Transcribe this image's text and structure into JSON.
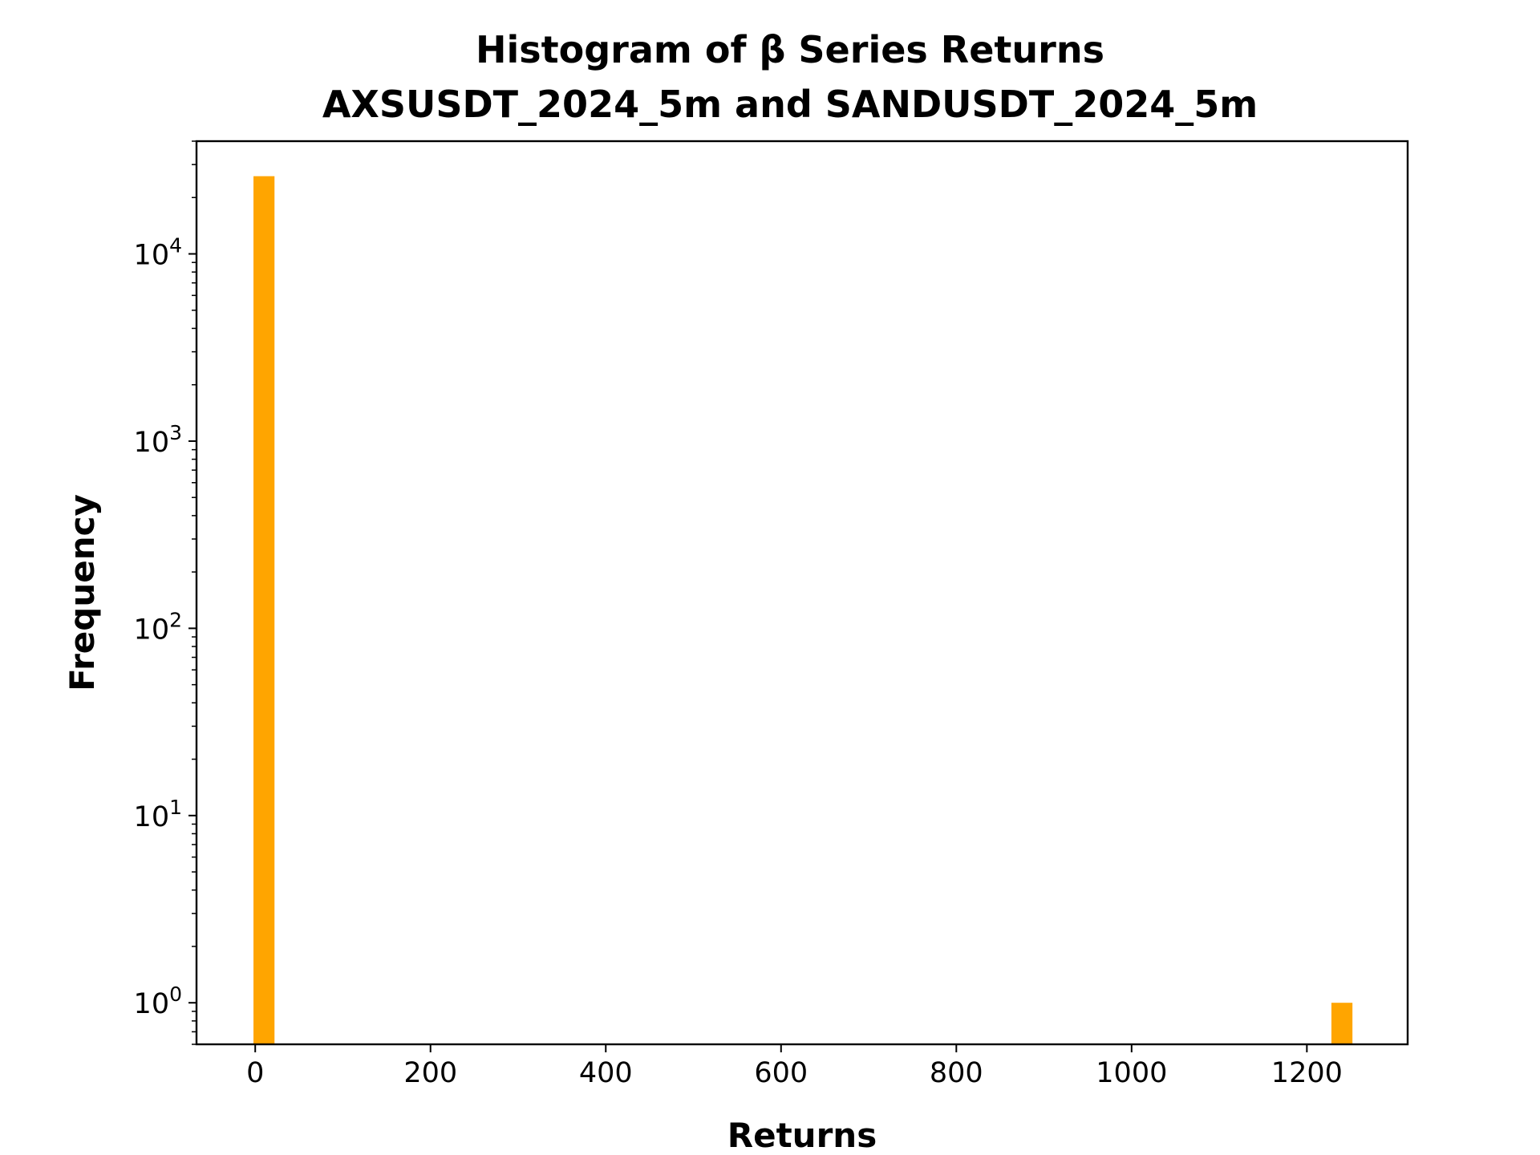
{
  "chart_data": {
    "type": "bar",
    "title_line1": "Histogram of β Series Returns",
    "title_line2": "AXSUSDT_2024_5m and SANDUSDT_2024_5m",
    "xlabel": "Returns",
    "ylabel": "Frequency",
    "xlim": [
      -67,
      1315
    ],
    "ylim": [
      0.6,
      40000
    ],
    "yscale": "log",
    "grid": false,
    "bar_color": "#ffa500",
    "x_ticks": [
      {
        "value": 0,
        "label": "0"
      },
      {
        "value": 200,
        "label": "200"
      },
      {
        "value": 400,
        "label": "400"
      },
      {
        "value": 600,
        "label": "600"
      },
      {
        "value": 800,
        "label": "800"
      },
      {
        "value": 1000,
        "label": "1000"
      },
      {
        "value": 1200,
        "label": "1200"
      }
    ],
    "y_ticks": [
      {
        "value": 1,
        "base": "10",
        "exp": "0"
      },
      {
        "value": 10,
        "base": "10",
        "exp": "1"
      },
      {
        "value": 100,
        "base": "10",
        "exp": "2"
      },
      {
        "value": 1000,
        "base": "10",
        "exp": "3"
      },
      {
        "value": 10000,
        "base": "10",
        "exp": "4"
      }
    ],
    "bins": [
      {
        "x0": -2,
        "x1": 22,
        "count": 26000
      },
      {
        "x0": 1228,
        "x1": 1252,
        "count": 1
      }
    ]
  }
}
